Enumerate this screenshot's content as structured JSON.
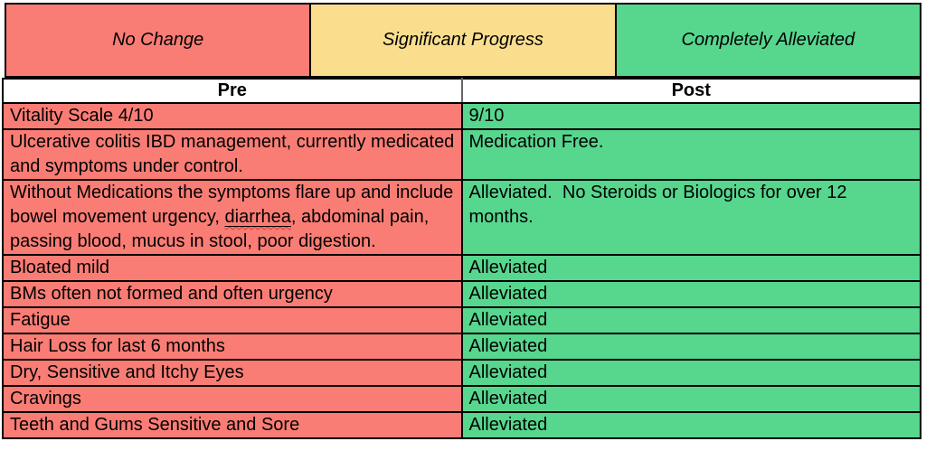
{
  "legend": {
    "items": [
      {
        "label": "No Change",
        "color": "#FA7D75"
      },
      {
        "label": "Significant Progress",
        "color": "#FBDE8D"
      },
      {
        "label": "Completely Alleviated",
        "color": "#57D68E"
      }
    ]
  },
  "table": {
    "headers": {
      "pre": "Pre",
      "post": "Post"
    },
    "rows": [
      {
        "pre": "Vitality Scale 4/10",
        "post": "9/10"
      },
      {
        "pre": "Ulcerative colitis IBD management, currently medicated and symptoms under control.",
        "post": "Medication Free."
      },
      {
        "pre_parts": [
          "Without Medications the symptoms flare up and include bowel movement urgency, ",
          "diarrhea",
          ", abdominal pain, passing blood, mucus in stool, poor digestion."
        ],
        "post": "Alleviated.  No Steroids or Biologics for over 12 months."
      },
      {
        "pre": "Bloated mild",
        "post": "Alleviated"
      },
      {
        "pre": "BMs often not formed and often urgency",
        "post": "Alleviated"
      },
      {
        "pre": "Fatigue",
        "post": "Alleviated"
      },
      {
        "pre": "Hair Loss for last 6 months",
        "post": "Alleviated"
      },
      {
        "pre": "Dry, Sensitive and Itchy Eyes",
        "post": "Alleviated"
      },
      {
        "pre": "Cravings",
        "post": "Alleviated"
      },
      {
        "pre": "Teeth and Gums Sensitive and Sore",
        "post": "Alleviated"
      }
    ]
  },
  "colors": {
    "pre_cell_bg": "#FA7D75",
    "post_cell_bg": "#57D68E",
    "legend_yellow": "#FBDE8D",
    "border": "#000000",
    "header_divider": "#666666",
    "misspelling_squiggle": "#E3342F"
  }
}
